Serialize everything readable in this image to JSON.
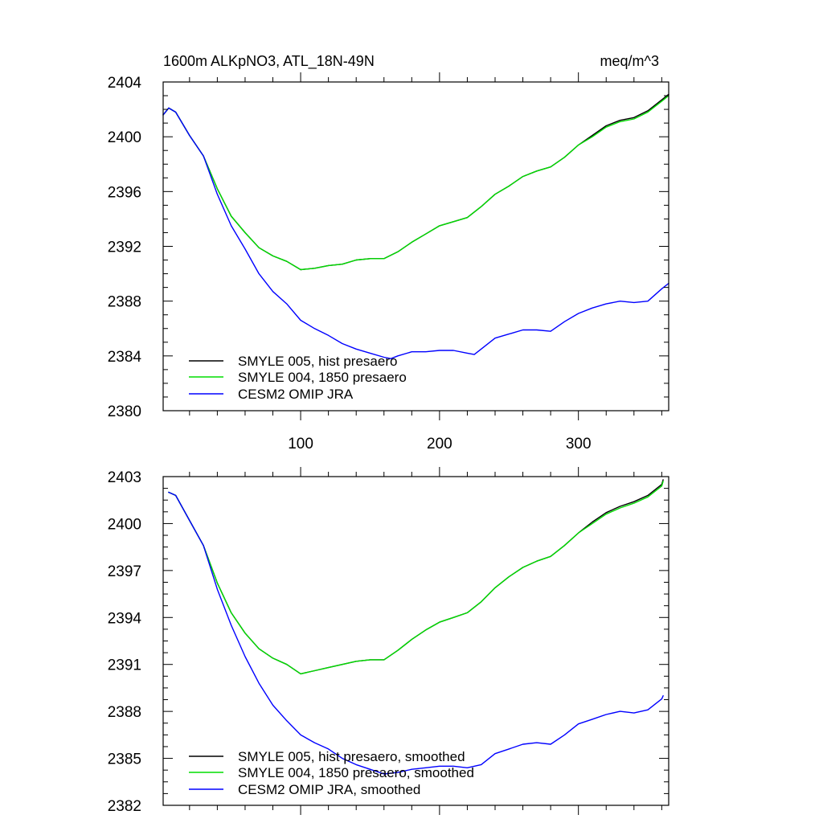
{
  "chart_data": [
    {
      "type": "line",
      "title_left": "1600m ALKpNO3, ATL_18N-49N",
      "title_right": "meq/m^3",
      "xlabel": "",
      "ylabel": "",
      "xlim": [
        1,
        365
      ],
      "ylim": [
        2380,
        2404
      ],
      "xticks_major": [
        100,
        200,
        300
      ],
      "xtick_labels": [
        "100",
        "200",
        "300"
      ],
      "yticks_major": [
        2380,
        2384,
        2388,
        2392,
        2396,
        2400,
        2404
      ],
      "ytick_labels": [
        "2380",
        "2384",
        "2388",
        "2392",
        "2396",
        "2400",
        "2404"
      ],
      "legend_position": "bottom-left",
      "series": [
        {
          "name": "SMYLE 005, hist presaero",
          "color": "#000000",
          "x": [
            1,
            5,
            10,
            20,
            30,
            40,
            50,
            60,
            70,
            80,
            90,
            100,
            110,
            120,
            130,
            140,
            150,
            160,
            170,
            180,
            190,
            200,
            210,
            220,
            230,
            240,
            250,
            260,
            270,
            280,
            290,
            300,
            310,
            320,
            330,
            340,
            350,
            360,
            365
          ],
          "y": [
            2401.6,
            2402.1,
            2401.8,
            2400.1,
            2398.6,
            2396.2,
            2394.2,
            2393.0,
            2391.9,
            2391.3,
            2390.9,
            2390.3,
            2390.4,
            2390.6,
            2390.7,
            2391.0,
            2391.1,
            2391.1,
            2391.6,
            2392.3,
            2392.9,
            2393.5,
            2393.8,
            2394.1,
            2394.9,
            2395.8,
            2396.4,
            2397.1,
            2397.5,
            2397.8,
            2398.5,
            2399.4,
            2400.1,
            2400.8,
            2401.2,
            2401.4,
            2401.9,
            2402.7,
            2403.1
          ]
        },
        {
          "name": "SMYLE 004, 1850 presaero",
          "color": "#00dd00",
          "x": [
            1,
            5,
            10,
            20,
            30,
            40,
            50,
            60,
            70,
            80,
            90,
            100,
            110,
            120,
            130,
            140,
            150,
            160,
            170,
            180,
            190,
            200,
            210,
            220,
            230,
            240,
            250,
            260,
            270,
            280,
            290,
            300,
            310,
            320,
            330,
            340,
            350,
            360,
            365
          ],
          "y": [
            2401.6,
            2402.1,
            2401.8,
            2400.1,
            2398.6,
            2396.2,
            2394.2,
            2393.0,
            2391.9,
            2391.3,
            2390.9,
            2390.3,
            2390.4,
            2390.6,
            2390.7,
            2391.0,
            2391.1,
            2391.1,
            2391.6,
            2392.3,
            2392.9,
            2393.5,
            2393.8,
            2394.1,
            2394.9,
            2395.8,
            2396.4,
            2397.1,
            2397.5,
            2397.8,
            2398.5,
            2399.4,
            2400.0,
            2400.7,
            2401.1,
            2401.3,
            2401.8,
            2402.6,
            2403.0
          ]
        },
        {
          "name": "CESM2 OMIP JRA",
          "color": "#0000ff",
          "x": [
            1,
            5,
            10,
            20,
            30,
            40,
            50,
            60,
            70,
            80,
            90,
            100,
            110,
            120,
            130,
            140,
            150,
            160,
            165,
            170,
            180,
            190,
            200,
            210,
            220,
            225,
            230,
            240,
            250,
            260,
            270,
            280,
            290,
            300,
            310,
            320,
            330,
            340,
            350,
            360,
            365
          ],
          "y": [
            2401.6,
            2402.1,
            2401.8,
            2400.1,
            2398.6,
            2395.8,
            2393.5,
            2391.8,
            2390.0,
            2388.7,
            2387.8,
            2386.6,
            2386.0,
            2385.5,
            2384.9,
            2384.5,
            2384.2,
            2383.9,
            2383.8,
            2384.0,
            2384.3,
            2384.3,
            2384.4,
            2384.4,
            2384.2,
            2384.1,
            2384.5,
            2385.3,
            2385.6,
            2385.9,
            2385.9,
            2385.8,
            2386.5,
            2387.1,
            2387.5,
            2387.8,
            2388.0,
            2387.9,
            2388.0,
            2388.9,
            2389.3
          ]
        }
      ]
    },
    {
      "type": "line",
      "title_left": "",
      "title_right": "",
      "xlabel": "",
      "ylabel": "",
      "xlim": [
        1,
        365
      ],
      "ylim": [
        2382,
        2403
      ],
      "xticks_major": [
        100,
        200,
        300
      ],
      "xtick_labels": [],
      "yticks_major": [
        2382,
        2385,
        2388,
        2391,
        2394,
        2397,
        2400,
        2403
      ],
      "ytick_labels": [
        "2382",
        "2385",
        "2388",
        "2391",
        "2394",
        "2397",
        "2400",
        "2403"
      ],
      "legend_position": "bottom-left",
      "series": [
        {
          "name": "SMYLE 005, hist presaero, smoothed",
          "color": "#000000",
          "x": [
            5,
            10,
            20,
            30,
            40,
            50,
            60,
            70,
            80,
            90,
            100,
            110,
            120,
            130,
            140,
            150,
            160,
            170,
            180,
            190,
            200,
            210,
            220,
            230,
            240,
            250,
            260,
            270,
            280,
            290,
            300,
            310,
            320,
            330,
            340,
            350,
            360,
            361
          ],
          "y": [
            2402.0,
            2401.8,
            2400.2,
            2398.6,
            2396.2,
            2394.3,
            2393.0,
            2392.0,
            2391.4,
            2391.0,
            2390.4,
            2390.6,
            2390.8,
            2391.0,
            2391.2,
            2391.3,
            2391.3,
            2391.9,
            2392.6,
            2393.2,
            2393.7,
            2394.0,
            2394.3,
            2395.0,
            2395.9,
            2396.6,
            2397.2,
            2397.6,
            2397.9,
            2398.6,
            2399.4,
            2400.1,
            2400.7,
            2401.1,
            2401.4,
            2401.8,
            2402.5,
            2402.8
          ]
        },
        {
          "name": "SMYLE 004, 1850 presaero, smoothed",
          "color": "#00dd00",
          "x": [
            5,
            10,
            20,
            30,
            40,
            50,
            60,
            70,
            80,
            90,
            100,
            110,
            120,
            130,
            140,
            150,
            160,
            170,
            180,
            190,
            200,
            210,
            220,
            230,
            240,
            250,
            260,
            270,
            280,
            290,
            300,
            310,
            320,
            330,
            340,
            350,
            360,
            361
          ],
          "y": [
            2402.0,
            2401.8,
            2400.2,
            2398.6,
            2396.2,
            2394.3,
            2393.0,
            2392.0,
            2391.4,
            2391.0,
            2390.4,
            2390.6,
            2390.8,
            2391.0,
            2391.2,
            2391.3,
            2391.3,
            2391.9,
            2392.6,
            2393.2,
            2393.7,
            2394.0,
            2394.3,
            2395.0,
            2395.9,
            2396.6,
            2397.2,
            2397.6,
            2397.9,
            2398.6,
            2399.4,
            2400.0,
            2400.6,
            2401.0,
            2401.3,
            2401.7,
            2402.4,
            2402.7
          ]
        },
        {
          "name": "CESM2 OMIP JRA, smoothed",
          "color": "#0000ff",
          "x": [
            5,
            10,
            20,
            30,
            40,
            50,
            60,
            70,
            80,
            90,
            100,
            110,
            120,
            130,
            140,
            150,
            160,
            170,
            180,
            190,
            200,
            210,
            220,
            230,
            240,
            250,
            260,
            270,
            280,
            290,
            300,
            310,
            320,
            330,
            340,
            350,
            360,
            361
          ],
          "y": [
            2402.0,
            2401.8,
            2400.2,
            2398.6,
            2395.8,
            2393.5,
            2391.5,
            2389.8,
            2388.4,
            2387.4,
            2386.5,
            2386.0,
            2385.6,
            2385.0,
            2384.6,
            2384.3,
            2384.0,
            2384.1,
            2384.3,
            2384.4,
            2384.5,
            2384.5,
            2384.4,
            2384.6,
            2385.3,
            2385.6,
            2385.9,
            2386.0,
            2385.9,
            2386.5,
            2387.2,
            2387.5,
            2387.8,
            2388.0,
            2387.9,
            2388.1,
            2388.8,
            2389.0
          ]
        }
      ]
    }
  ]
}
